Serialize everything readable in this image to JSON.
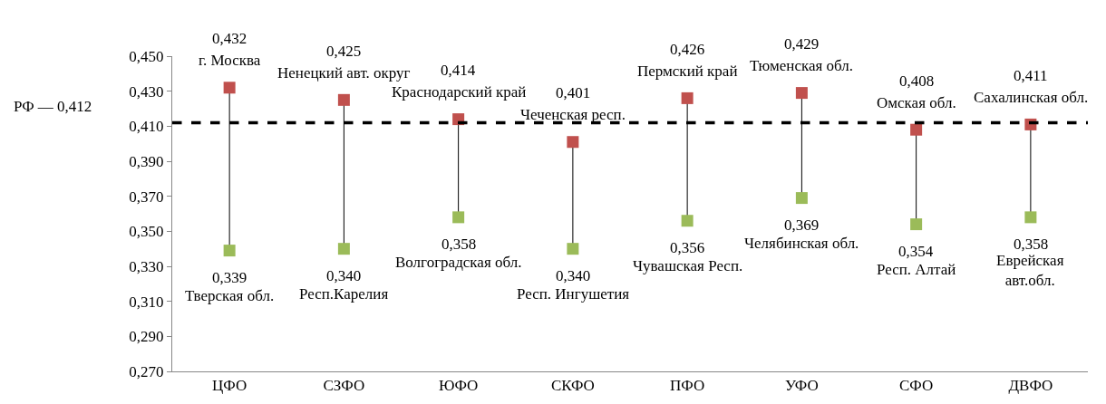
{
  "chart_data": {
    "type": "scatter",
    "categories": [
      "ЦФО",
      "СЗФО",
      "ЮФО",
      "СКФО",
      "ПФО",
      "УФО",
      "СФО",
      "ДВФО"
    ],
    "series": [
      {
        "name": null,
        "color": "#c0504d",
        "values": [
          0.432,
          0.425,
          0.414,
          0.401,
          0.426,
          0.429,
          0.408,
          0.411
        ],
        "value_labels": [
          "0,432",
          "0,425",
          "0,414",
          "0,401",
          "0,426",
          "0,429",
          "0,408",
          "0,411"
        ]
      },
      {
        "name": null,
        "color": "#9bbb59",
        "values": [
          0.339,
          0.34,
          0.358,
          0.34,
          0.356,
          0.369,
          0.354,
          0.358
        ],
        "value_labels": [
          "0,339",
          "0,340",
          "0,358",
          "0,340",
          "0,356",
          "0,369",
          "0,354",
          "0,358"
        ]
      }
    ],
    "annotations": [
      {
        "text": "г. Москва",
        "x": "ЦФО",
        "y": 0.432
      },
      {
        "text": "Ненецкий авт. округ",
        "x": "СЗФО",
        "y": 0.425
      },
      {
        "text": "Краснодарский край",
        "x": "ЮФО",
        "y": 0.414
      },
      {
        "text": "Чеченская респ.",
        "x": "СКФО",
        "y": 0.401
      },
      {
        "text": "Пермский край",
        "x": "ПФО",
        "y": 0.426
      },
      {
        "text": "Тюменская обл.",
        "x": "УФО",
        "y": 0.429
      },
      {
        "text": "Омская обл.",
        "x": "СФО",
        "y": 0.408
      },
      {
        "text": "Сахалинская обл.",
        "x": "ДВФО",
        "y": 0.411
      },
      {
        "text": "Тверская обл.",
        "x": "ЦФО",
        "y": 0.339
      },
      {
        "text": "Респ.Карелия",
        "x": "СЗФО",
        "y": 0.34
      },
      {
        "text": "Волгоградская обл.",
        "x": "ЮФО",
        "y": 0.358
      },
      {
        "text": "Респ. Ингушетия",
        "x": "СКФО",
        "y": 0.34
      },
      {
        "text": "Чувашская Респ.",
        "x": "ПФО",
        "y": 0.356
      },
      {
        "text": "Челябинская обл.",
        "x": "УФО",
        "y": 0.369
      },
      {
        "text": "Респ. Алтай",
        "x": "СФО",
        "y": 0.354
      },
      {
        "text": "Еврейская авт.обл.",
        "x": "ДВФО",
        "y": 0.358
      }
    ],
    "ylim": [
      0.27,
      0.45
    ],
    "yticks": [
      {
        "value": 0.27,
        "label": "0,270"
      },
      {
        "value": 0.29,
        "label": "0,290"
      },
      {
        "value": 0.31,
        "label": "0,310"
      },
      {
        "value": 0.33,
        "label": "0,330"
      },
      {
        "value": 0.35,
        "label": "0,350"
      },
      {
        "value": 0.37,
        "label": "0,370"
      },
      {
        "value": 0.39,
        "label": "0,390"
      },
      {
        "value": 0.41,
        "label": "0,410"
      },
      {
        "value": 0.43,
        "label": "0,430"
      },
      {
        "value": 0.45,
        "label": "0,450"
      }
    ],
    "ref_lines": [
      {
        "axis": "y",
        "value": 0.412,
        "label": "РФ — 0,412",
        "color": "#000000",
        "line_style": "dashed"
      }
    ],
    "marker": "square"
  }
}
